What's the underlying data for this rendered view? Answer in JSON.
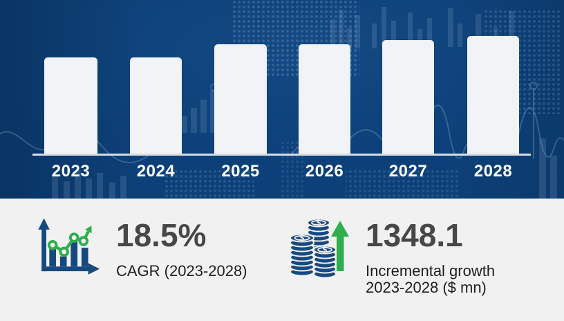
{
  "theme": {
    "navy_bg": "#0D4078",
    "bar_fill": "#F1F3F7",
    "axis_line": "#D8DCE1",
    "bottom_bg": "#F1F1F2",
    "stat_number_color": "#474747",
    "stat_label_color": "#1E1E1E",
    "icon_blue": "#17497F",
    "icon_green": "#2FAE4C"
  },
  "chart_data": {
    "type": "bar",
    "categories": [
      "2023",
      "2024",
      "2025",
      "2026",
      "2027",
      "2028"
    ],
    "values": [
      139,
      139,
      158,
      158,
      164,
      170
    ],
    "values_unit": "relative bar heights in px (no numeric axis labels shown)",
    "title": "",
    "xlabel": "",
    "ylabel": "",
    "legend": "none",
    "gridlines": false,
    "bar_color": "#F1F3F7",
    "background": "#0D4078"
  },
  "stats": {
    "cagr": {
      "icon": "growth-chart-icon",
      "value": "18.5%",
      "label": "CAGR (2023-2028)"
    },
    "incremental_growth": {
      "icon": "coins-icon",
      "value": "1348.1",
      "label_line1": "Incremental growth",
      "label_line2": "2023-2028 ($ mn)"
    }
  }
}
